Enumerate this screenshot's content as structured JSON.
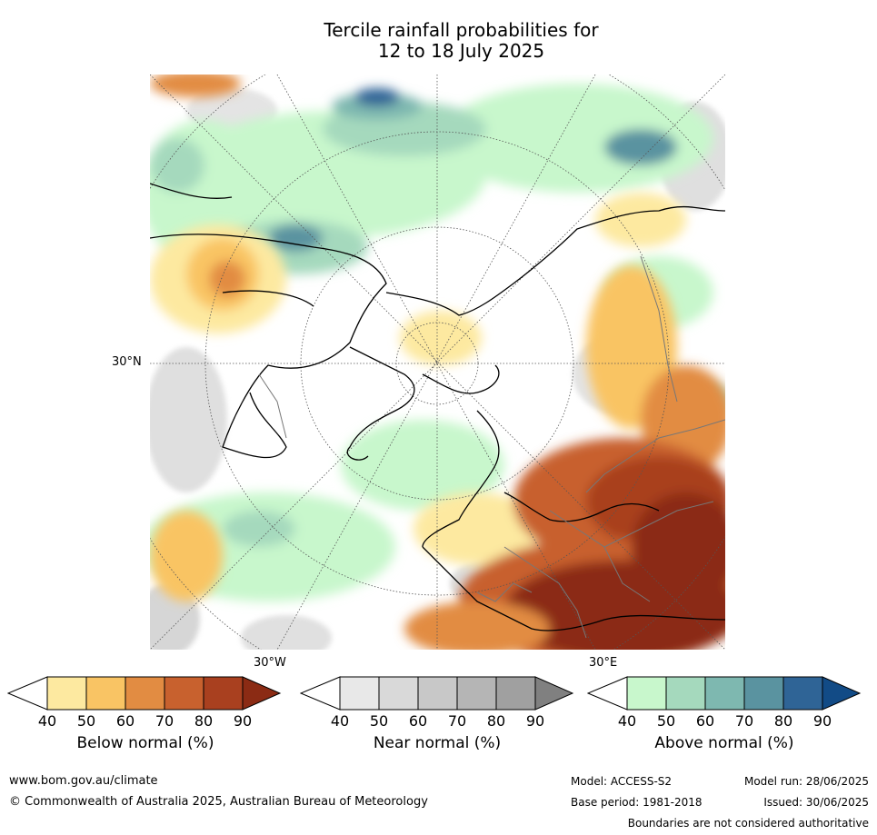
{
  "title_line1": "Tercile rainfall probabilities for",
  "title_line2": "12 to 18 July 2025",
  "labels": {
    "lat30n": "30°N",
    "lon30w": "30°W",
    "lon30e": "30°E"
  },
  "colorbars": [
    {
      "label": "Below normal (%)",
      "ticks": [
        "40",
        "50",
        "60",
        "70",
        "80",
        "90"
      ],
      "colors": [
        "#fde9a0",
        "#f9c464",
        "#e28c42",
        "#c8612e",
        "#a9401f",
        "#8b2b14"
      ]
    },
    {
      "label": "Near normal (%)",
      "ticks": [
        "40",
        "50",
        "60",
        "70",
        "80",
        "90"
      ],
      "colors": [
        "#e8e8e8",
        "#d9d9d9",
        "#c8c8c8",
        "#b5b5b5",
        "#a0a0a0",
        "#808080"
      ]
    },
    {
      "label": "Above normal (%)",
      "ticks": [
        "40",
        "50",
        "60",
        "70",
        "80",
        "90"
      ],
      "colors": [
        "#c8f7cc",
        "#a5d9bd",
        "#7eb8b0",
        "#5a93a0",
        "#2f6496",
        "#124b86"
      ]
    }
  ],
  "footer": {
    "website": "www.bom.gov.au/climate",
    "copyright": "© Commonwealth of Australia 2025, Australian Bureau of Meteorology",
    "model": "Model: ACCESS-S2",
    "base_period": "Base period: 1981-2018",
    "model_run": "Model run: 28/06/2025",
    "issued": "Issued: 30/06/2025",
    "boundaries": "Boundaries are not considered authoritative"
  }
}
